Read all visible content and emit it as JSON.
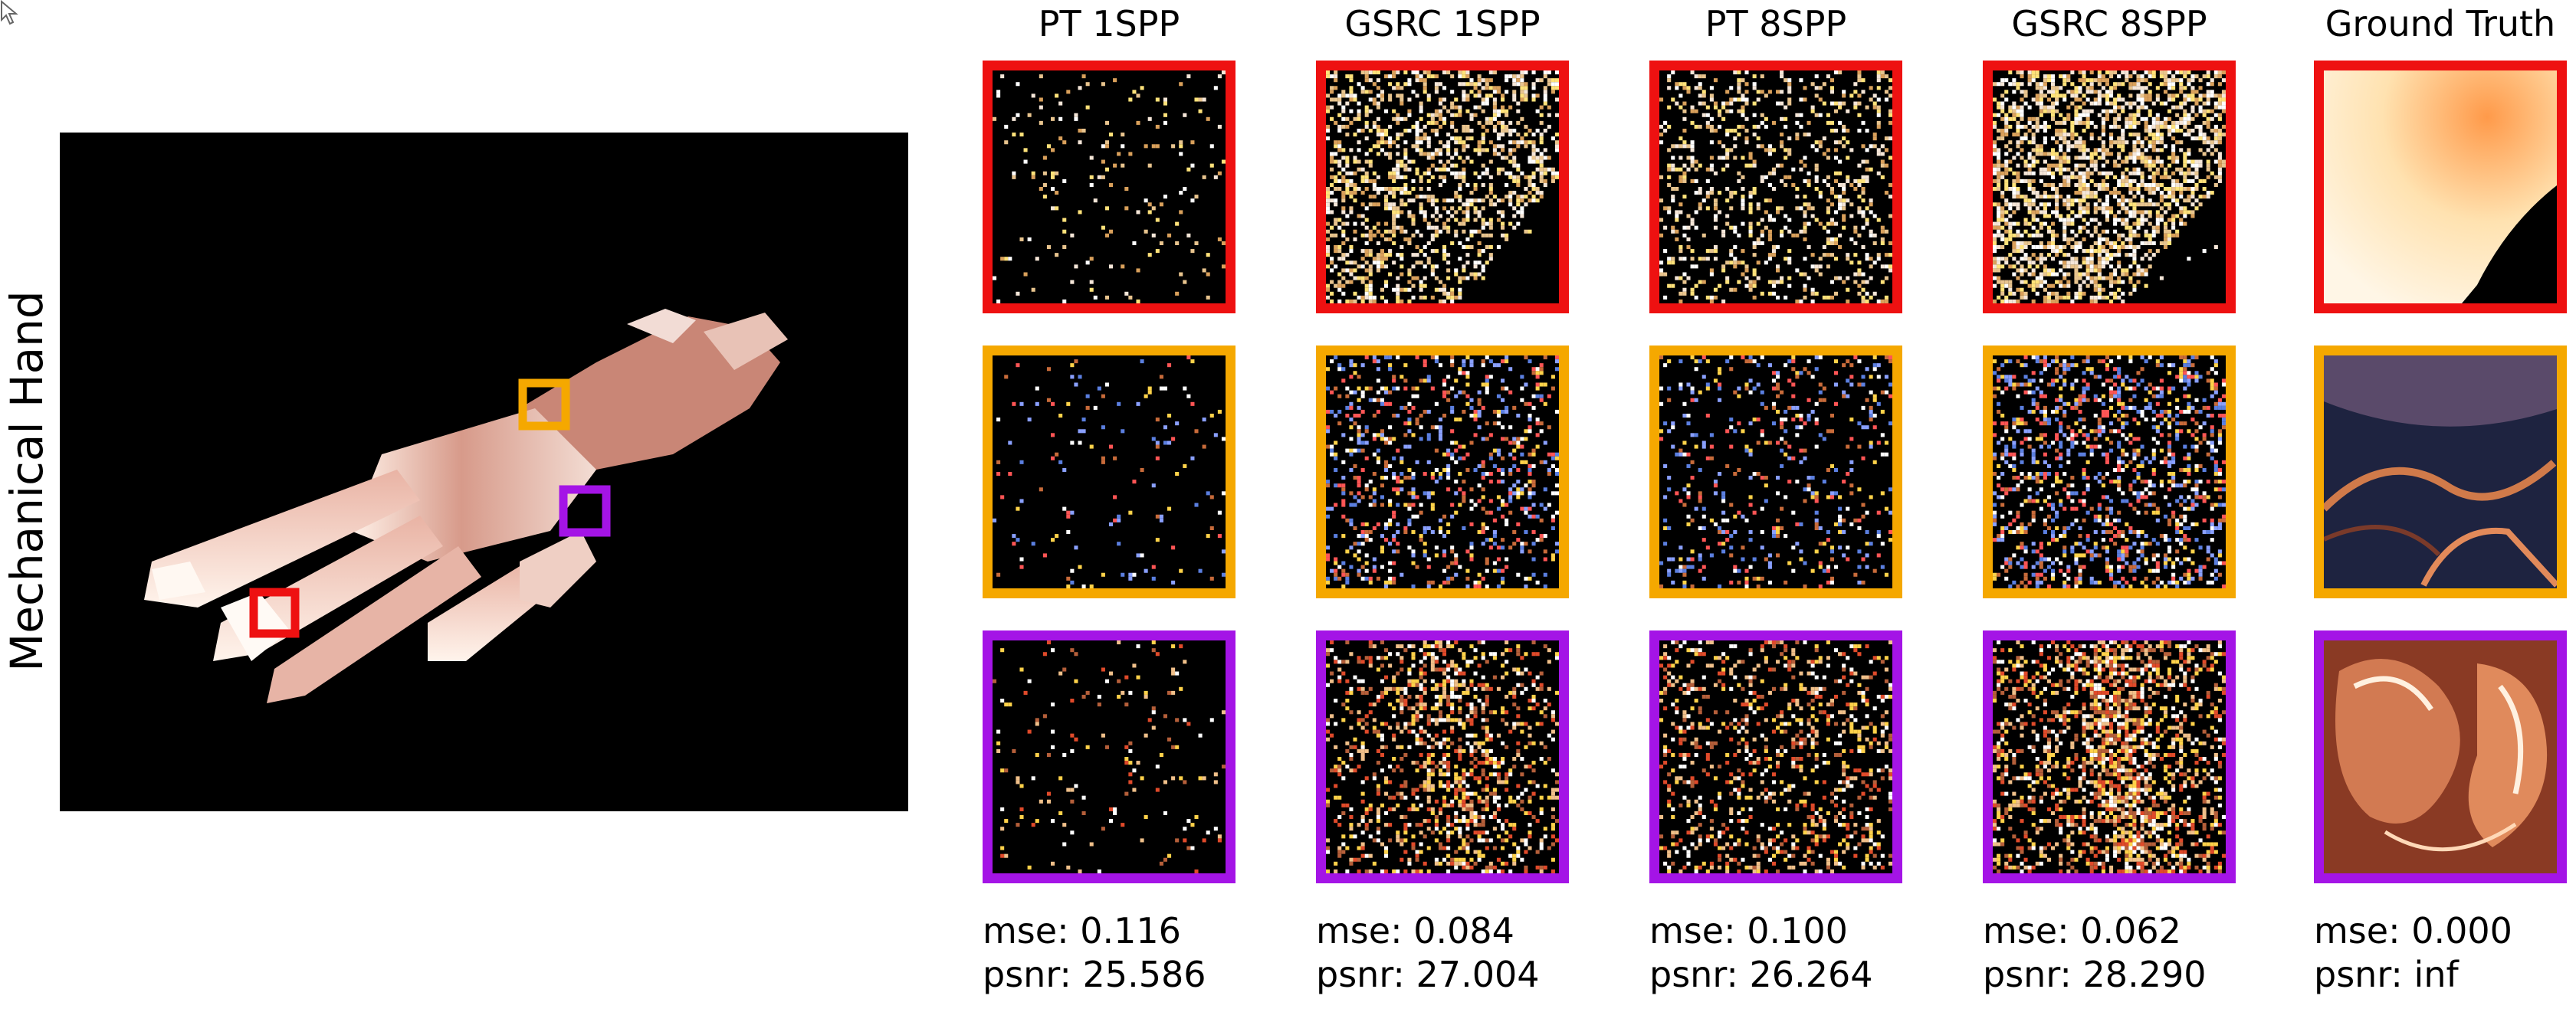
{
  "row_label": "Mechanical Hand",
  "colors": {
    "red": "#ee1111",
    "orange": "#f5a800",
    "purple": "#a414e6"
  },
  "columns": [
    {
      "title": "PT 1SPP",
      "mse_label": "mse: 0.116",
      "psnr_label": "psnr: 25.586"
    },
    {
      "title": "GSRC 1SPP",
      "mse_label": "mse: 0.084",
      "psnr_label": "psnr: 27.004"
    },
    {
      "title": "PT 8SPP",
      "mse_label": "mse: 0.100",
      "psnr_label": "psnr: 26.264"
    },
    {
      "title": "GSRC 8SPP",
      "mse_label": "mse: 0.062",
      "psnr_label": "psnr: 28.290"
    },
    {
      "title": "Ground Truth",
      "mse_label": "mse: 0.000",
      "psnr_label": "psnr: inf"
    }
  ],
  "crop_rows": [
    "red",
    "orange",
    "purple"
  ]
}
